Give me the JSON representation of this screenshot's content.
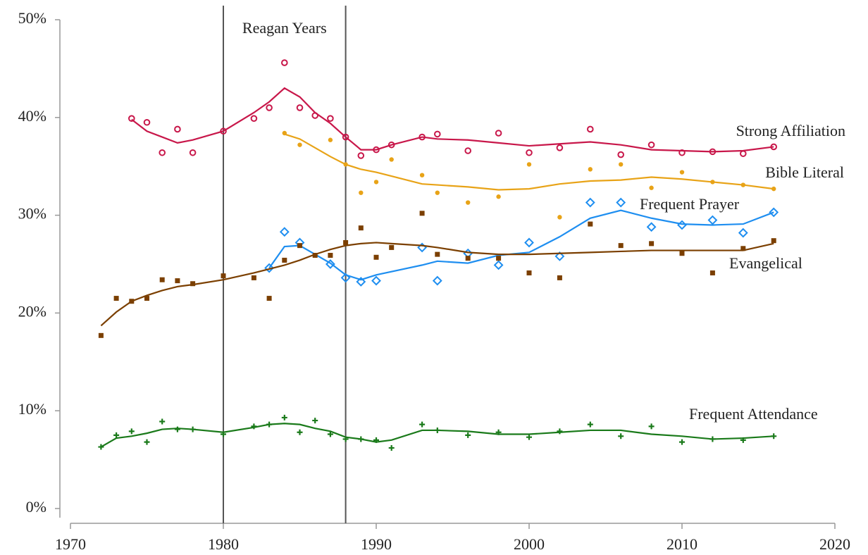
{
  "chart_data": {
    "type": "scatter-trend",
    "xlim": [
      1970,
      2020
    ],
    "xticks": [
      1970,
      1980,
      1990,
      2000,
      2010,
      2020
    ],
    "ylim": [
      0,
      50
    ],
    "yticks": [
      {
        "value": 0,
        "label": "0%"
      },
      {
        "value": 10,
        "label": "10%"
      },
      {
        "value": 20,
        "label": "20%"
      },
      {
        "value": 30,
        "label": "30%"
      },
      {
        "value": 40,
        "label": "40%"
      },
      {
        "value": 50,
        "label": "50%"
      }
    ],
    "annotation": {
      "label": "Reagan Years",
      "start": 1980,
      "end": 1988
    },
    "series": [
      {
        "name": "Strong Affiliation",
        "color": "#c8174a",
        "marker": "open-circle",
        "x": [
          1974,
          1975,
          1976,
          1977,
          1978,
          1980,
          1982,
          1983,
          1984,
          1985,
          1986,
          1987,
          1988,
          1989,
          1990,
          1991,
          1993,
          1994,
          1996,
          1998,
          2000,
          2002,
          2004,
          2006,
          2008,
          2010,
          2012,
          2014,
          2016
        ],
        "values": [
          39.9,
          39.5,
          36.4,
          38.8,
          36.4,
          38.6,
          39.9,
          41.0,
          45.6,
          41.0,
          40.2,
          39.9,
          38.0,
          36.1,
          36.7,
          37.2,
          38.0,
          38.3,
          36.6,
          38.4,
          36.4,
          36.9,
          38.8,
          36.2,
          37.2,
          36.4,
          36.5,
          36.3,
          37.0
        ],
        "trend": [
          39.8,
          38.6,
          38.0,
          37.4,
          37.7,
          38.6,
          40.5,
          41.6,
          43.0,
          42.1,
          40.5,
          39.4,
          38.0,
          36.7,
          36.7,
          37.2,
          38.0,
          37.8,
          37.7,
          37.4,
          37.1,
          37.3,
          37.5,
          37.2,
          36.7,
          36.6,
          36.5,
          36.6,
          37.0
        ]
      },
      {
        "name": "Bible Literal",
        "color": "#e8a317",
        "marker": "dot",
        "x": [
          1984,
          1985,
          1987,
          1988,
          1989,
          1990,
          1991,
          1993,
          1994,
          1996,
          1998,
          2000,
          2002,
          2004,
          2006,
          2008,
          2010,
          2012,
          2014,
          2016
        ],
        "values": [
          38.4,
          37.2,
          37.7,
          35.2,
          32.3,
          33.4,
          35.7,
          34.1,
          32.3,
          31.3,
          31.9,
          35.2,
          29.8,
          34.7,
          35.2,
          32.8,
          34.4,
          33.4,
          33.1,
          32.7
        ],
        "trend": [
          38.3,
          37.8,
          36.0,
          35.2,
          34.7,
          34.4,
          34.0,
          33.2,
          33.1,
          32.9,
          32.6,
          32.7,
          33.2,
          33.5,
          33.6,
          33.9,
          33.7,
          33.4,
          33.1,
          32.7
        ]
      },
      {
        "name": "Frequent Prayer",
        "color": "#1e8ef0",
        "marker": "open-diamond",
        "x": [
          1983,
          1984,
          1985,
          1987,
          1988,
          1989,
          1990,
          1993,
          1994,
          1996,
          1998,
          2000,
          2002,
          2004,
          2006,
          2008,
          2010,
          2012,
          2014,
          2016
        ],
        "values": [
          24.6,
          28.3,
          27.2,
          25.0,
          23.6,
          23.2,
          23.3,
          26.7,
          23.3,
          26.1,
          24.9,
          27.2,
          25.8,
          31.3,
          31.3,
          28.8,
          29.0,
          29.5,
          28.2,
          30.3
        ],
        "trend": [
          24.6,
          26.8,
          26.9,
          25.1,
          23.9,
          23.4,
          23.9,
          24.9,
          25.3,
          25.1,
          25.9,
          26.2,
          27.8,
          29.7,
          30.5,
          29.7,
          29.1,
          29.0,
          29.1,
          30.3
        ]
      },
      {
        "name": "Evangelical",
        "color": "#7b3f00",
        "marker": "square",
        "x": [
          1972,
          1973,
          1974,
          1975,
          1976,
          1977,
          1978,
          1980,
          1982,
          1983,
          1984,
          1985,
          1986,
          1987,
          1988,
          1989,
          1990,
          1991,
          1993,
          1994,
          1996,
          1998,
          2000,
          2002,
          2004,
          2006,
          2008,
          2010,
          2012,
          2014,
          2016
        ],
        "values": [
          17.7,
          21.5,
          21.2,
          21.5,
          23.4,
          23.3,
          23.0,
          23.8,
          23.6,
          21.5,
          25.4,
          26.9,
          25.9,
          25.9,
          27.2,
          28.7,
          25.7,
          26.7,
          30.2,
          26.0,
          25.6,
          25.6,
          24.1,
          23.6,
          29.1,
          26.9,
          27.1,
          26.1,
          24.1,
          26.6,
          27.4
        ],
        "trend": [
          18.7,
          20.1,
          21.2,
          21.8,
          22.3,
          22.7,
          22.9,
          23.4,
          24.1,
          24.5,
          24.9,
          25.4,
          26.0,
          26.5,
          26.9,
          27.1,
          27.2,
          27.1,
          26.9,
          26.7,
          26.2,
          26.0,
          26.0,
          26.1,
          26.2,
          26.3,
          26.4,
          26.4,
          26.4,
          26.4,
          27.1
        ]
      },
      {
        "name": "Frequent Attendance",
        "color": "#1a7a1a",
        "marker": "plus",
        "x": [
          1972,
          1973,
          1974,
          1975,
          1976,
          1977,
          1978,
          1980,
          1982,
          1983,
          1984,
          1985,
          1986,
          1987,
          1988,
          1989,
          1990,
          1991,
          1993,
          1994,
          1996,
          1998,
          2000,
          2002,
          2004,
          2006,
          2008,
          2010,
          2012,
          2014,
          2016
        ],
        "values": [
          6.3,
          7.5,
          7.9,
          6.8,
          8.9,
          8.1,
          8.1,
          7.6,
          8.4,
          8.6,
          9.3,
          7.8,
          9.0,
          7.6,
          7.1,
          7.1,
          7.0,
          6.2,
          8.6,
          8.0,
          7.5,
          7.8,
          7.3,
          7.9,
          8.6,
          7.4,
          8.4,
          6.8,
          7.1,
          7.0,
          7.4
        ],
        "trend": [
          6.3,
          7.2,
          7.4,
          7.7,
          8.1,
          8.2,
          8.1,
          7.8,
          8.3,
          8.6,
          8.7,
          8.6,
          8.2,
          7.9,
          7.3,
          7.1,
          6.8,
          7.0,
          8.0,
          8.0,
          7.9,
          7.6,
          7.6,
          7.8,
          8.0,
          8.0,
          7.6,
          7.4,
          7.1,
          7.2,
          7.4
        ]
      }
    ]
  }
}
